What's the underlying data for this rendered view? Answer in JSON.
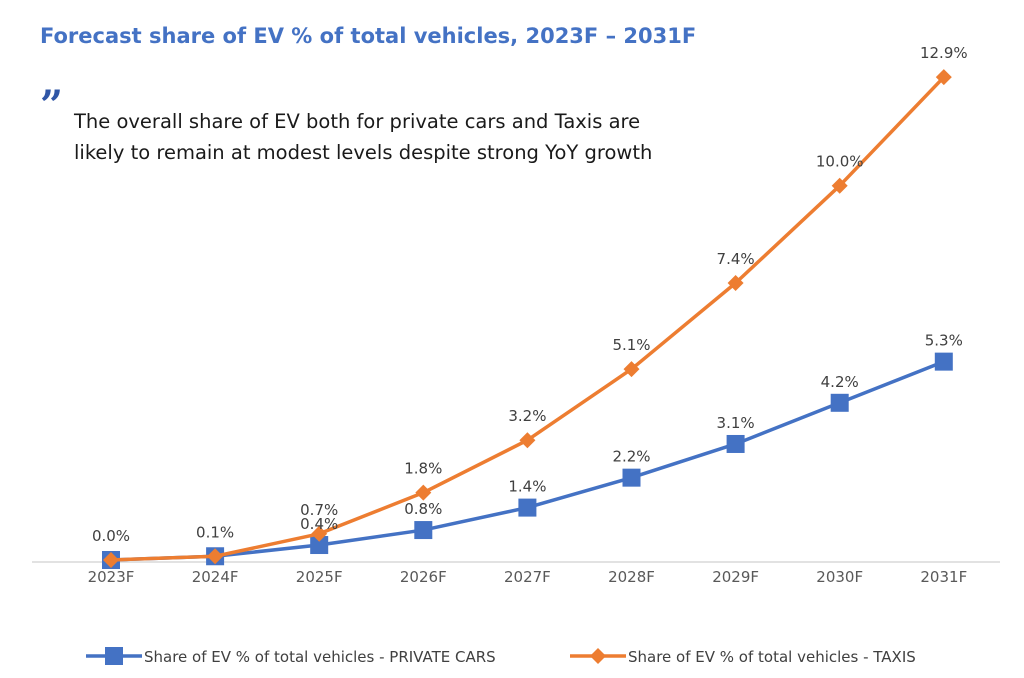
{
  "header": {
    "title": "Forecast share of EV % of total vehicles, 2023F – 2031F"
  },
  "callout": {
    "quote_mark": "”",
    "text": "The overall share of EV both for private cars and Taxis are likely to remain at modest levels despite strong YoY growth"
  },
  "colors": {
    "private_cars": "#4472c4",
    "taxis": "#ed7d31",
    "title": "#4472c4",
    "axis": "#d9d9d9"
  },
  "chart_data": {
    "type": "line",
    "title": "Forecast share of EV % of total vehicles, 2023F – 2031F",
    "xlabel": "",
    "ylabel": "",
    "categories": [
      "2023F",
      "2024F",
      "2025F",
      "2026F",
      "2027F",
      "2028F",
      "2029F",
      "2030F",
      "2031F"
    ],
    "ylim": [
      0,
      14
    ],
    "grid": false,
    "legend_position": "bottom",
    "series": [
      {
        "name": "Share of EV % of total vehicles - PRIVATE CARS",
        "values": [
          0.0,
          0.1,
          0.4,
          0.8,
          1.4,
          2.2,
          3.1,
          4.2,
          5.3
        ],
        "labels": [
          "",
          "",
          "0.4%",
          "0.8%",
          "1.4%",
          "2.2%",
          "3.1%",
          "4.2%",
          "5.3%"
        ],
        "marker": "square",
        "color": "#4472c4"
      },
      {
        "name": "Share of EV % of total vehicles - TAXIS",
        "values": [
          0.0,
          0.1,
          0.7,
          1.8,
          3.2,
          5.1,
          7.4,
          10.0,
          12.9
        ],
        "labels": [
          "0.0%",
          "0.1%",
          "0.7%",
          "1.8%",
          "3.2%",
          "5.1%",
          "7.4%",
          "10.0%",
          "12.9%"
        ],
        "marker": "diamond",
        "color": "#ed7d31"
      }
    ]
  }
}
